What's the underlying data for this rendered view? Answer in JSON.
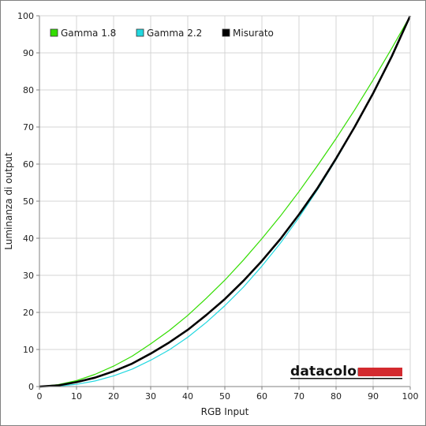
{
  "chart_data": {
    "type": "line",
    "xlabel": "RGB Input",
    "ylabel": "Luminanza di output",
    "xlim": [
      0,
      100
    ],
    "ylim": [
      0,
      100
    ],
    "x_ticks": [
      0,
      10,
      20,
      30,
      40,
      50,
      60,
      70,
      80,
      90,
      100
    ],
    "y_ticks": [
      0,
      10,
      20,
      30,
      40,
      50,
      60,
      70,
      80,
      90,
      100
    ],
    "grid": true,
    "legend_position": "top-left",
    "x": [
      0,
      5,
      10,
      15,
      20,
      25,
      30,
      35,
      40,
      45,
      50,
      55,
      60,
      65,
      70,
      75,
      80,
      85,
      90,
      95,
      100
    ],
    "series": [
      {
        "name": "Gamma 1.8",
        "color": "#33dd00",
        "values": [
          0,
          0.5,
          1.6,
          3.3,
          5.5,
          8.2,
          11.5,
          15.1,
          19.2,
          23.8,
          28.7,
          34.1,
          39.9,
          46.0,
          52.6,
          59.6,
          66.9,
          74.6,
          82.7,
          91.2,
          100
        ]
      },
      {
        "name": "Gamma 2.2",
        "color": "#22d8e0",
        "values": [
          0,
          0.1,
          0.6,
          1.5,
          2.9,
          4.7,
          7.1,
          9.9,
          13.3,
          17.3,
          21.8,
          26.8,
          32.5,
          38.7,
          45.6,
          53.1,
          61.2,
          69.9,
          79.3,
          89.3,
          100
        ]
      },
      {
        "name": "Misurato",
        "color": "#000000",
        "values": [
          0,
          0.3,
          1.2,
          2.4,
          4.1,
          6.2,
          8.9,
          11.9,
          15.3,
          19.3,
          23.6,
          28.5,
          33.9,
          39.8,
          46.4,
          53.5,
          61.5,
          70.0,
          79.1,
          89.0,
          100
        ]
      }
    ]
  },
  "watermark": {
    "logo_text": "datacolor",
    "bar_color": "#d32a2f"
  }
}
